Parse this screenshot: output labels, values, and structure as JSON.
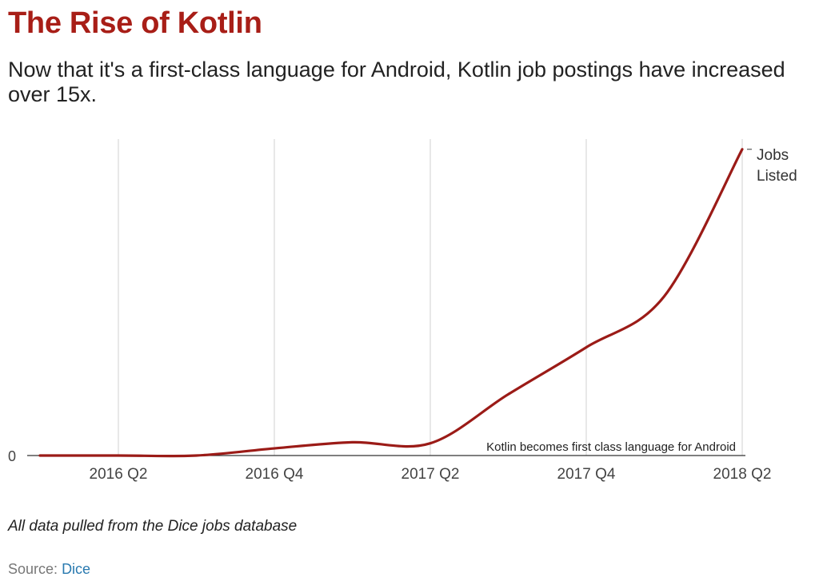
{
  "header": {
    "title": "The Rise of Kotlin",
    "subtitle": "Now that it's a first-class language for Android, Kotlin job postings have increased over 15x."
  },
  "footer": {
    "note": "All data pulled from the Dice jobs database",
    "source_label": "Source:",
    "source_link": "Dice"
  },
  "colors": {
    "title": "#a81e17",
    "line": "#9b1b17",
    "grid": "#d9d9d9",
    "axis": "#333333",
    "link": "#2a7ab0"
  },
  "chart_data": {
    "type": "line",
    "title": "",
    "xlabel": "",
    "ylabel": "",
    "x_ticks": [
      "2016 Q2",
      "2016 Q4",
      "2017 Q2",
      "2017 Q4",
      "2018 Q2"
    ],
    "y_ticks": [
      "0"
    ],
    "xlim": [
      0,
      4
    ],
    "ylim": [
      0,
      15.5
    ],
    "grid": {
      "vertical": true,
      "horizontal": false
    },
    "series": [
      {
        "name": "Jobs Listed",
        "x": [
          -0.5,
          0,
          0.5,
          1,
          1.5,
          2,
          2.5,
          3,
          3.5,
          4
        ],
        "values": [
          0,
          0,
          0,
          0.35,
          0.65,
          0.6,
          3.0,
          5.3,
          7.8,
          15.0
        ]
      }
    ],
    "annotation": {
      "x": 2,
      "text": "Kotlin becomes first class language for Android"
    }
  }
}
